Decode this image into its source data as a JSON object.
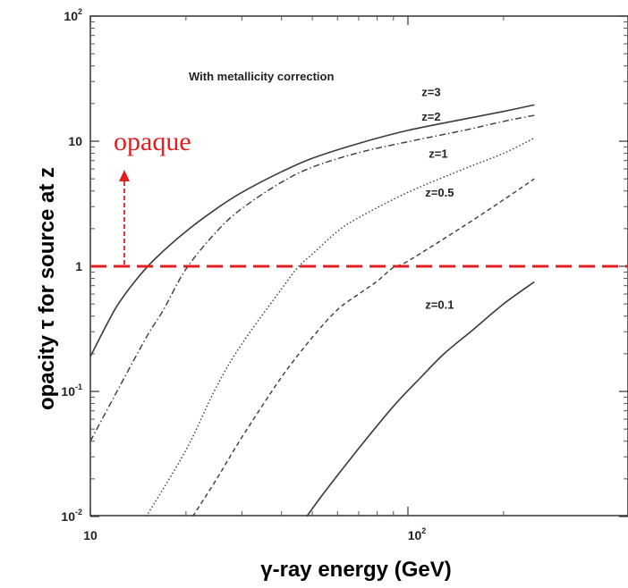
{
  "chart_data": {
    "type": "line",
    "title": "With metallicity correction",
    "xlabel": "γ-ray energy (GeV)",
    "ylabel": "opacity τ for source at z",
    "x_scale": "log",
    "y_scale": "log",
    "xlim": [
      10,
      250
    ],
    "ylim": [
      0.01,
      100
    ],
    "x_ticks": [
      {
        "value": 10,
        "base": "10",
        "exp": ""
      },
      {
        "value": 100,
        "base": "10",
        "exp": "2"
      }
    ],
    "y_ticks": [
      {
        "value": 0.01,
        "base": "10",
        "exp": "-2"
      },
      {
        "value": 0.1,
        "base": "10",
        "exp": "-1"
      },
      {
        "value": 1,
        "base": "1",
        "exp": ""
      },
      {
        "value": 10,
        "base": "10",
        "exp": ""
      },
      {
        "value": 100,
        "base": "10",
        "exp": "2"
      }
    ],
    "series": [
      {
        "name": "z=3",
        "style": "solid",
        "x": [
          10,
          12,
          14,
          16,
          20,
          25,
          30,
          40,
          50,
          70,
          100,
          150,
          200,
          250
        ],
        "y": [
          0.19,
          0.46,
          0.79,
          1.15,
          1.9,
          2.9,
          3.9,
          5.7,
          7.3,
          9.6,
          12.2,
          15.0,
          17.3,
          19.5
        ]
      },
      {
        "name": "z=2",
        "style": "dashdot",
        "x": [
          10,
          12,
          15,
          17,
          20,
          25,
          30,
          40,
          50,
          70,
          100,
          150,
          200,
          250
        ],
        "y": [
          0.04,
          0.095,
          0.27,
          0.45,
          0.95,
          1.9,
          2.9,
          4.7,
          6.2,
          8.1,
          9.9,
          12.2,
          14.4,
          16.1
        ]
      },
      {
        "name": "z=1",
        "style": "dotted",
        "x": [
          15,
          20,
          25,
          30,
          40,
          45,
          50,
          60,
          70,
          100,
          150,
          200,
          250
        ],
        "y": [
          0.01,
          0.034,
          0.11,
          0.24,
          0.66,
          0.98,
          1.25,
          1.9,
          2.45,
          3.9,
          6.0,
          8.0,
          10.6
        ]
      },
      {
        "name": "z=0.5",
        "style": "dashed",
        "x": [
          21,
          25,
          30,
          40,
          50,
          60,
          70,
          80,
          90,
          100,
          150,
          200,
          250
        ],
        "y": [
          0.01,
          0.02,
          0.043,
          0.13,
          0.27,
          0.45,
          0.6,
          0.76,
          0.98,
          1.1,
          2.1,
          3.4,
          5.0
        ]
      },
      {
        "name": "z=0.1",
        "style": "solid",
        "x": [
          48,
          55,
          70,
          90,
          110,
          130,
          160,
          200,
          250
        ],
        "y": [
          0.01,
          0.016,
          0.035,
          0.076,
          0.13,
          0.2,
          0.31,
          0.5,
          0.75
        ]
      }
    ],
    "reference_line": {
      "label": "opaque",
      "y": 1,
      "style": "dashed",
      "color": "#e02020"
    },
    "grid": false
  }
}
